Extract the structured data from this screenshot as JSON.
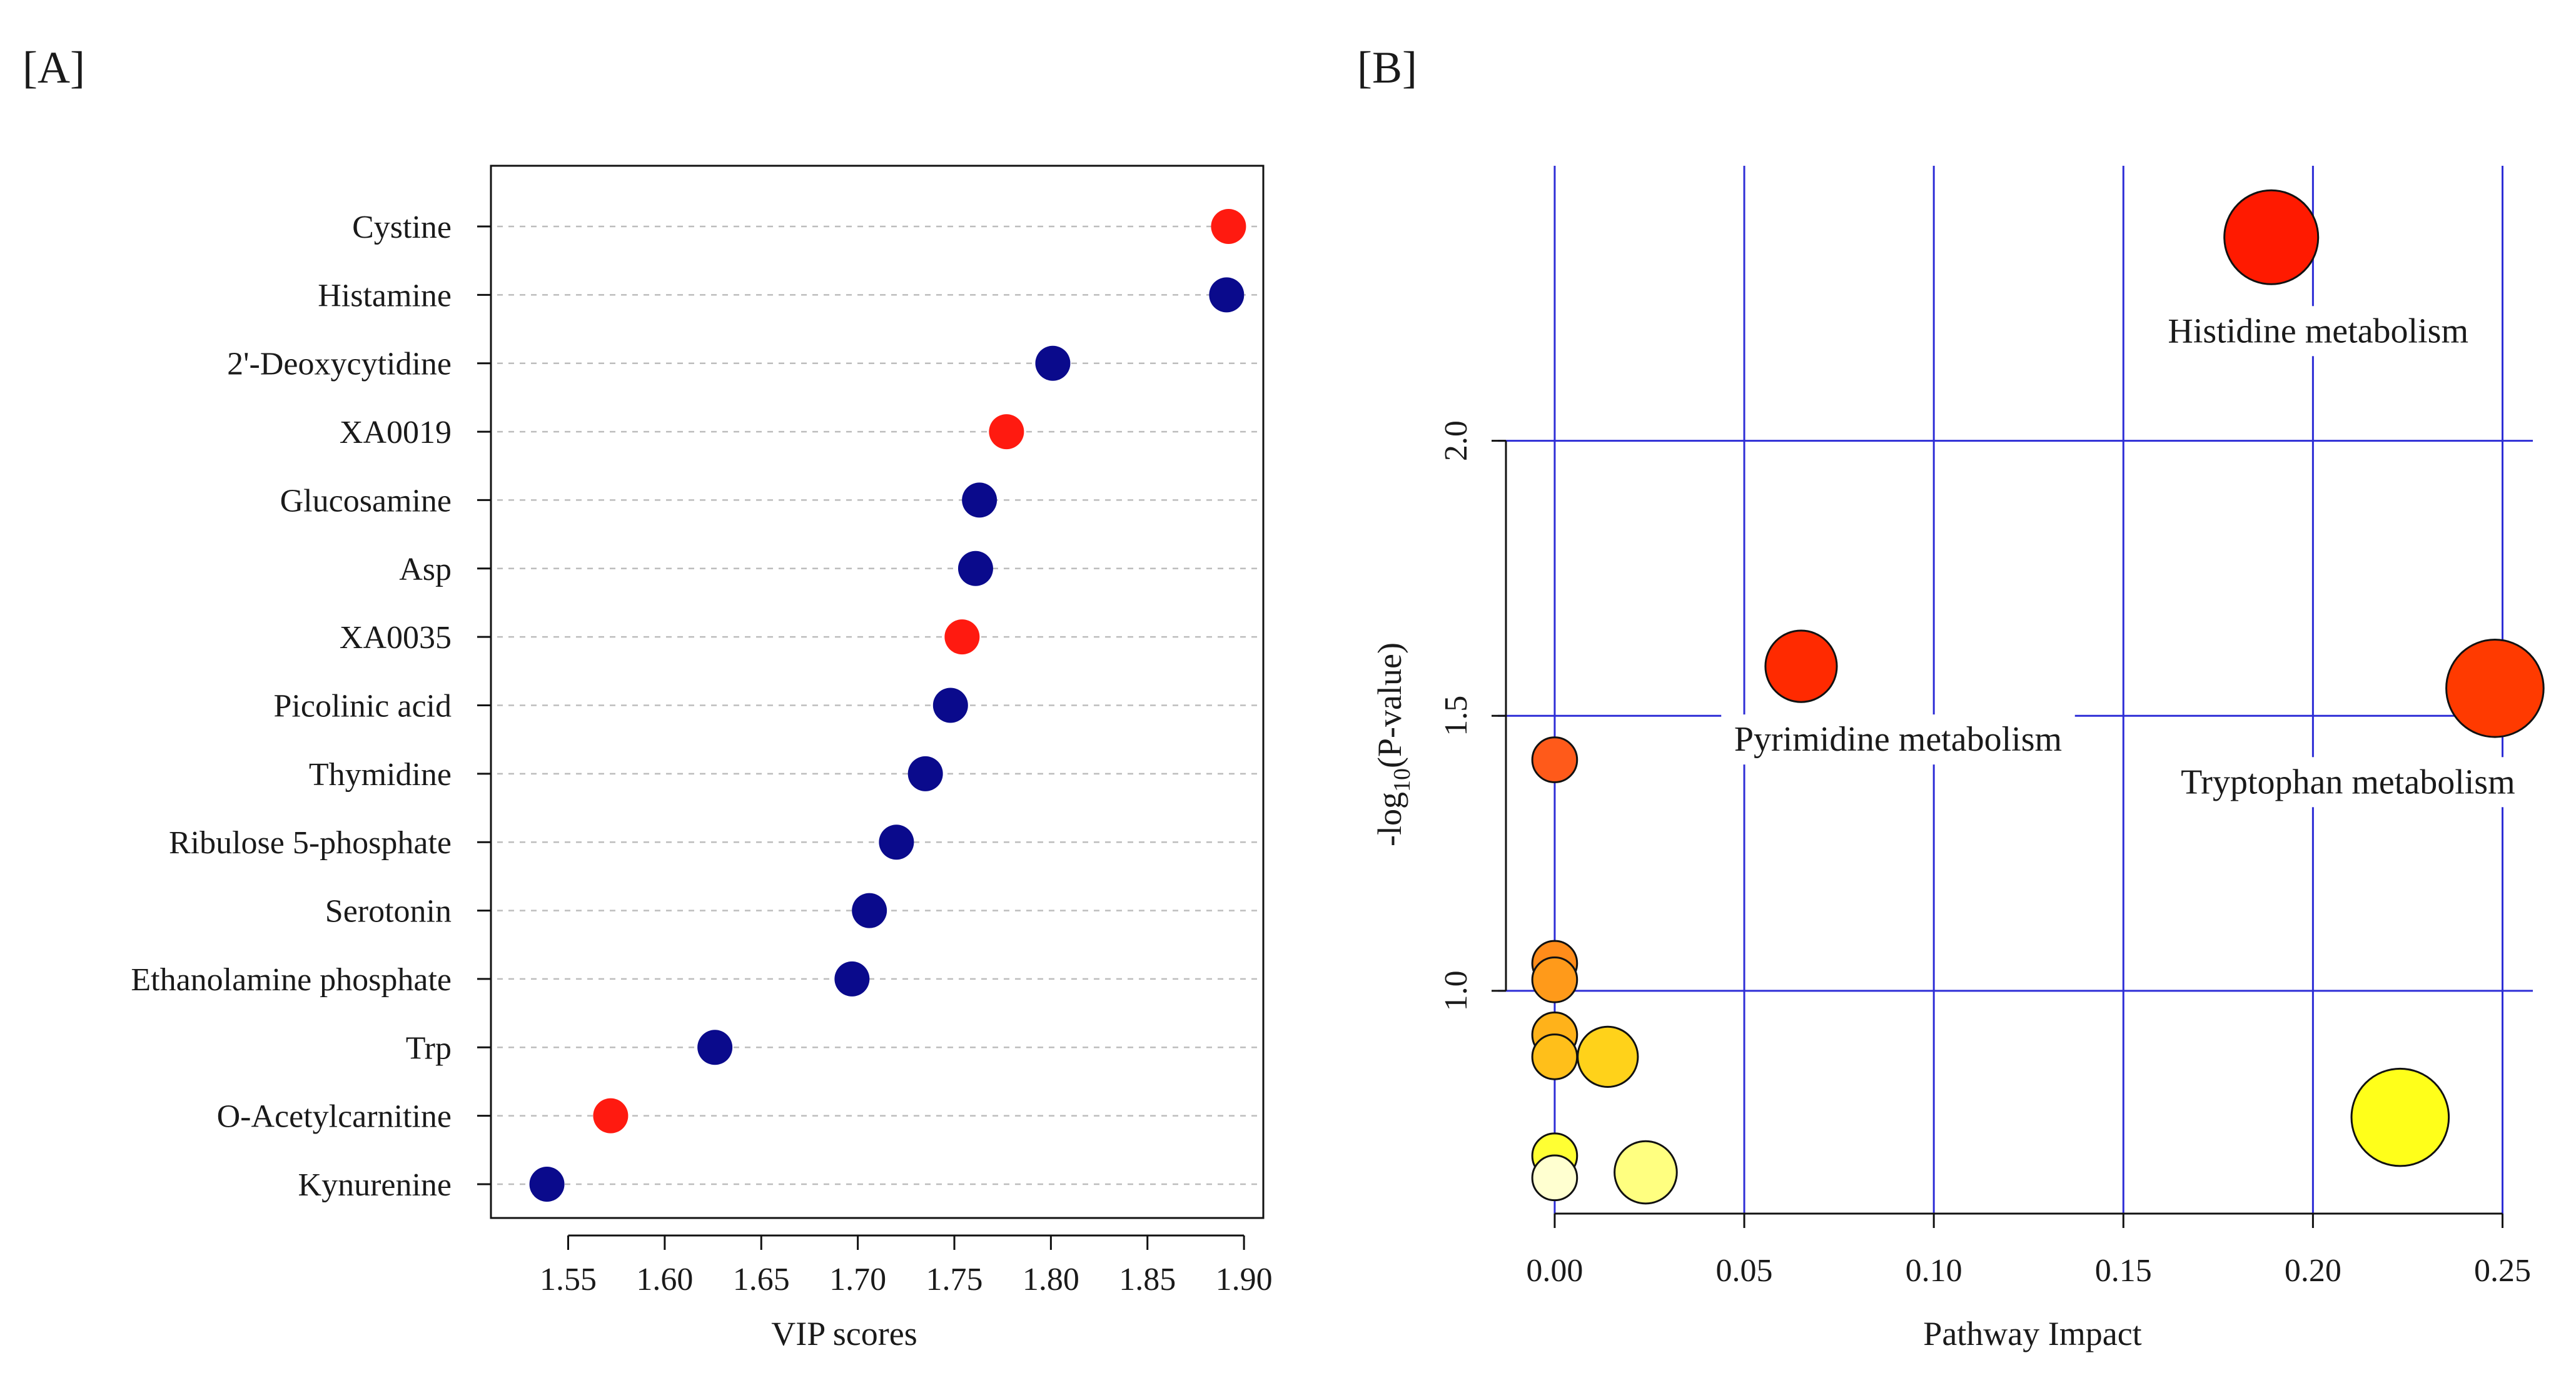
{
  "panels": {
    "a_label": "[A]",
    "b_label": "[B]"
  },
  "chart_data": [
    {
      "type": "scatter",
      "title": "",
      "xlabel": "VIP scores",
      "ylabel": "",
      "xlim": [
        1.51,
        1.91
      ],
      "xticks": [
        "1.55",
        "1.60",
        "1.65",
        "1.70",
        "1.75",
        "1.80",
        "1.85",
        "1.90"
      ],
      "grid": "horizontal-dotted",
      "colors": {
        "up": "#ff1a10",
        "down": "#0a0a8c"
      },
      "points": [
        {
          "name": "Cystine",
          "value": 1.892,
          "group": "up"
        },
        {
          "name": "Histamine",
          "value": 1.891,
          "group": "down"
        },
        {
          "name": "2'-Deoxycytidine",
          "value": 1.801,
          "group": "down"
        },
        {
          "name": "XA0019",
          "value": 1.777,
          "group": "up"
        },
        {
          "name": "Glucosamine",
          "value": 1.763,
          "group": "down"
        },
        {
          "name": "Asp",
          "value": 1.761,
          "group": "down"
        },
        {
          "name": "XA0035",
          "value": 1.754,
          "group": "up"
        },
        {
          "name": "Picolinic acid",
          "value": 1.748,
          "group": "down"
        },
        {
          "name": "Thymidine",
          "value": 1.735,
          "group": "down"
        },
        {
          "name": "Ribulose 5-phosphate",
          "value": 1.72,
          "group": "down"
        },
        {
          "name": "Serotonin",
          "value": 1.706,
          "group": "down"
        },
        {
          "name": "Ethanolamine phosphate",
          "value": 1.697,
          "group": "down"
        },
        {
          "name": "Trp",
          "value": 1.626,
          "group": "down"
        },
        {
          "name": "O-Acetylcarnitine",
          "value": 1.572,
          "group": "up"
        },
        {
          "name": "Kynurenine",
          "value": 1.539,
          "group": "down"
        }
      ]
    },
    {
      "type": "scatter",
      "title": "",
      "xlabel": "Pathway Impact",
      "ylabel_prefix": "-log",
      "ylabel_sub": "10",
      "ylabel_suffix": "(P-value)",
      "xlim": [
        -0.015,
        0.258
      ],
      "ylim": [
        0.595,
        2.5
      ],
      "xticks": [
        "0.00",
        "0.05",
        "0.10",
        "0.15",
        "0.20",
        "0.25"
      ],
      "yticks": [
        "1.0",
        "1.5",
        "2.0"
      ],
      "grid_color": "#2d2dd6",
      "points": [
        {
          "name": "Histidine metabolism",
          "impact": 0.189,
          "logp": 2.37,
          "size": 1.0,
          "color": "#ff1a00"
        },
        {
          "name": "Tryptophan metabolism",
          "impact": 0.248,
          "logp": 1.55,
          "size": 1.05,
          "color": "#ff3a00"
        },
        {
          "name": "Pyrimidine metabolism",
          "impact": 0.065,
          "logp": 1.59,
          "size": 0.68,
          "color": "#ff2a00"
        },
        {
          "name": "",
          "impact": 0.0,
          "logp": 1.42,
          "size": 0.3,
          "color": "#ff5a1a"
        },
        {
          "name": "",
          "impact": 0.0,
          "logp": 1.05,
          "size": 0.3,
          "color": "#ff8c1a"
        },
        {
          "name": "",
          "impact": 0.0,
          "logp": 1.02,
          "size": 0.3,
          "color": "#ff9a1a"
        },
        {
          "name": "",
          "impact": 0.0,
          "logp": 0.92,
          "size": 0.3,
          "color": "#ffb21a"
        },
        {
          "name": "",
          "impact": 0.0,
          "logp": 0.88,
          "size": 0.3,
          "color": "#ffbf1a"
        },
        {
          "name": "",
          "impact": 0.014,
          "logp": 0.88,
          "size": 0.52,
          "color": "#ffd21a"
        },
        {
          "name": "",
          "impact": 0.223,
          "logp": 0.77,
          "size": 1.05,
          "color": "#ffff1a"
        },
        {
          "name": "",
          "impact": 0.0,
          "logp": 0.7,
          "size": 0.3,
          "color": "#ffff33"
        },
        {
          "name": "",
          "impact": 0.0,
          "logp": 0.66,
          "size": 0.3,
          "color": "#ffffd0"
        },
        {
          "name": "",
          "impact": 0.024,
          "logp": 0.67,
          "size": 0.55,
          "color": "#ffff80"
        }
      ]
    }
  ]
}
